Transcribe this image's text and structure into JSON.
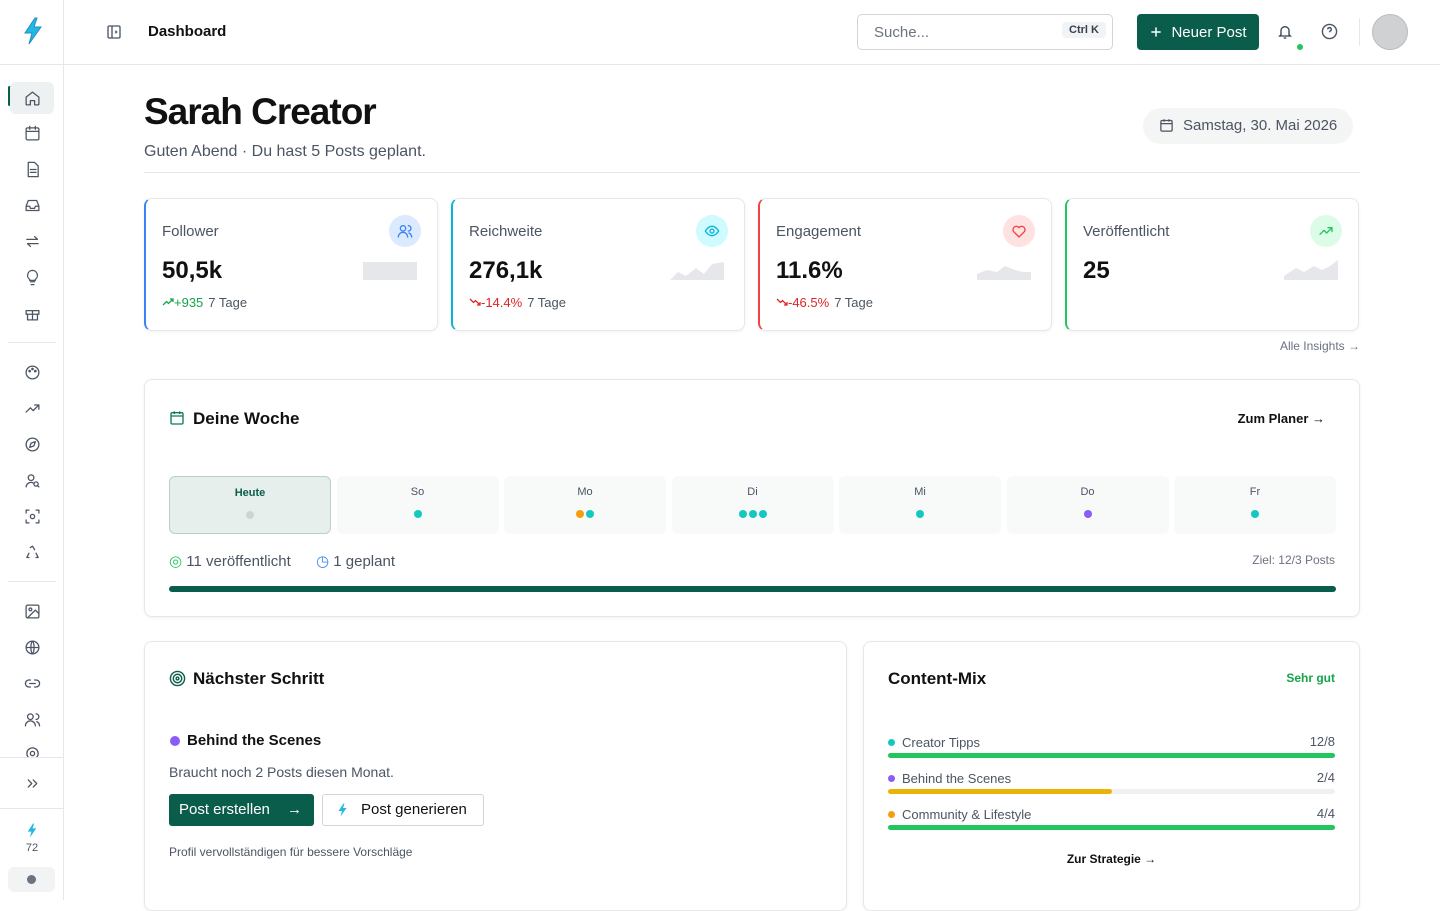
{
  "header": {
    "title": "Dashboard",
    "search_placeholder": "Suche...",
    "shortcut": "Ctrl K",
    "new_post": "Neuer Post"
  },
  "sidebar": {
    "credits": "72"
  },
  "profile": {
    "name": "Sarah Creator",
    "greeting": "Guten Abend · Du hast 5 Posts geplant.",
    "date": "Samstag, 30. Mai 2026"
  },
  "stats": [
    {
      "label": "Follower",
      "value": "50,5k",
      "change": "+935",
      "period": "7 Tage",
      "trend": "up",
      "color": "#3b82f6",
      "icon_bg": "#dbeafe"
    },
    {
      "label": "Reichweite",
      "value": "276,1k",
      "change": "-14.4%",
      "period": "7 Tage",
      "trend": "down",
      "color": "#06b6d4",
      "icon_bg": "#cffafe"
    },
    {
      "label": "Engagement",
      "value": "11.6%",
      "change": "-46.5%",
      "period": "7 Tage",
      "trend": "down",
      "color": "#ef4444",
      "icon_bg": "#fee2e2"
    },
    {
      "label": "Veröffentlicht",
      "value": "25",
      "trend": "up",
      "color": "#22c55e",
      "icon_bg": "#dcfce7"
    }
  ],
  "insights_link": "Alle Insights",
  "week": {
    "title": "Deine Woche",
    "planner_link": "Zum Planer",
    "days": [
      {
        "label": "Heute",
        "dots": [
          "#cfd3d6"
        ],
        "today": true
      },
      {
        "label": "So",
        "dots": [
          "#14c8c0"
        ]
      },
      {
        "label": "Mo",
        "dots": [
          "#f59e0b",
          "#14c8c0"
        ]
      },
      {
        "label": "Di",
        "dots": [
          "#14c8c0",
          "#14c8c0",
          "#14c8c0"
        ]
      },
      {
        "label": "Mi",
        "dots": [
          "#14c8c0"
        ]
      },
      {
        "label": "Do",
        "dots": [
          "#8b5cf6"
        ]
      },
      {
        "label": "Fr",
        "dots": [
          "#14c8c0"
        ]
      }
    ],
    "published": "11 veröffentlicht",
    "planned": "1 geplant",
    "goal": "Ziel: 12/3 Posts",
    "progress": 100
  },
  "next_step": {
    "title": "Nächster Schritt",
    "pillar": "Behind the Scenes",
    "hint": "Braucht noch 2 Posts diesen Monat.",
    "create": "Post erstellen",
    "generate": "Post generieren",
    "profile_hint": "Profil vervollständigen für bessere Vorschläge"
  },
  "content_mix": {
    "title": "Content-Mix",
    "rating": "Sehr gut",
    "link": "Zur Strategie",
    "items": [
      {
        "name": "Creator Tipps",
        "count": "12/8",
        "progress": 100,
        "dot": "#14c8c0",
        "bar": "#22c55e"
      },
      {
        "name": "Behind the Scenes",
        "count": "2/4",
        "progress": 50,
        "dot": "#8b5cf6",
        "bar": "#eab308"
      },
      {
        "name": "Community & Lifestyle",
        "count": "4/4",
        "progress": 100,
        "dot": "#f59e0b",
        "bar": "#22c55e"
      }
    ]
  }
}
